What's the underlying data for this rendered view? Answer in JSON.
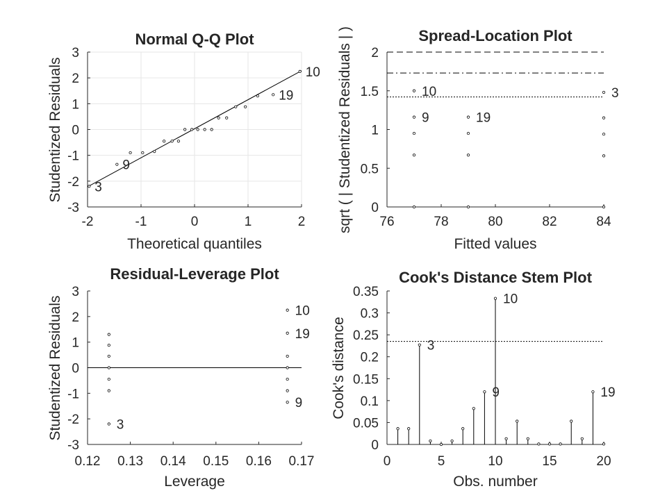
{
  "chart_data": [
    {
      "type": "scatter",
      "title": "Normal Q-Q Plot",
      "xlabel": "Theoretical quantiles",
      "ylabel": "Studentized Residuals",
      "xlim": [
        -2,
        2
      ],
      "ylim": [
        -3,
        3
      ],
      "xticks": [
        "-2",
        "-1",
        "0",
        "1",
        "2"
      ],
      "yticks": [
        "-3",
        "-2",
        "-1",
        "0",
        "1",
        "2",
        "3"
      ],
      "grid": true,
      "points": [
        [
          -1.97,
          -2.2
        ],
        [
          -1.45,
          -1.35
        ],
        [
          -1.2,
          -0.9
        ],
        [
          -0.97,
          -0.9
        ],
        [
          -0.75,
          -0.85
        ],
        [
          -0.57,
          -0.45
        ],
        [
          -0.42,
          -0.45
        ],
        [
          -0.3,
          -0.45
        ],
        [
          -0.18,
          0.0
        ],
        [
          -0.05,
          0.0
        ],
        [
          0.06,
          0.0
        ],
        [
          0.19,
          0.0
        ],
        [
          0.32,
          0.0
        ],
        [
          0.45,
          0.45
        ],
        [
          0.6,
          0.45
        ],
        [
          0.77,
          0.88
        ],
        [
          0.95,
          0.88
        ],
        [
          1.18,
          1.3
        ],
        [
          1.47,
          1.35
        ],
        [
          1.97,
          2.25
        ]
      ],
      "reference_line": [
        [
          -2,
          -2.22
        ],
        [
          2,
          2.28
        ]
      ],
      "annotations": [
        {
          "text": "10",
          "x": 1.97,
          "y": 2.25
        },
        {
          "text": "19",
          "x": 1.47,
          "y": 1.35
        },
        {
          "text": "9",
          "x": -1.45,
          "y": -1.35
        },
        {
          "text": "3",
          "x": -1.97,
          "y": -2.2
        }
      ]
    },
    {
      "type": "scatter",
      "title": "Spread-Location Plot",
      "xlabel": "Fitted values",
      "ylabel": "sqrt ( | Studentized Residuals | )",
      "xlim": [
        76,
        84
      ],
      "ylim": [
        0,
        2
      ],
      "xticks": [
        "76",
        "78",
        "80",
        "82",
        "84"
      ],
      "yticks": [
        "0",
        "0.5",
        "1",
        "1.5",
        "2"
      ],
      "grid": false,
      "points": [
        [
          77,
          1.5
        ],
        [
          77,
          1.16
        ],
        [
          77,
          0.95
        ],
        [
          77,
          0.67
        ],
        [
          77,
          0.0
        ],
        [
          79,
          1.16
        ],
        [
          79,
          0.95
        ],
        [
          79,
          0.67
        ],
        [
          79,
          0.0
        ],
        [
          84,
          1.48
        ],
        [
          84,
          1.15
        ],
        [
          84,
          0.94
        ],
        [
          84,
          0.66
        ],
        [
          84,
          0.0
        ]
      ],
      "hlines": [
        {
          "y": 2.0,
          "style": "dashed"
        },
        {
          "y": 1.73,
          "style": "dashdot"
        },
        {
          "y": 1.42,
          "style": "dotted"
        }
      ],
      "annotations": [
        {
          "text": "10",
          "x": 77,
          "y": 1.5
        },
        {
          "text": "9",
          "x": 77,
          "y": 1.16
        },
        {
          "text": "19",
          "x": 79,
          "y": 1.16
        },
        {
          "text": "3",
          "x": 84,
          "y": 1.48
        }
      ]
    },
    {
      "type": "scatter",
      "title": "Residual-Leverage Plot",
      "xlabel": "Leverage",
      "ylabel": "Studentized Residuals",
      "xlim": [
        0.12,
        0.17
      ],
      "ylim": [
        -3,
        3
      ],
      "xticks": [
        "0.12",
        "0.13",
        "0.14",
        "0.15",
        "0.16",
        "0.17"
      ],
      "yticks": [
        "-3",
        "-2",
        "-1",
        "0",
        "1",
        "2",
        "3"
      ],
      "grid": false,
      "points": [
        [
          0.125,
          1.3
        ],
        [
          0.125,
          0.88
        ],
        [
          0.125,
          0.45
        ],
        [
          0.125,
          0.0
        ],
        [
          0.125,
          -0.45
        ],
        [
          0.125,
          -0.9
        ],
        [
          0.125,
          -2.2
        ],
        [
          0.1667,
          2.25
        ],
        [
          0.1667,
          1.35
        ],
        [
          0.1667,
          0.45
        ],
        [
          0.1667,
          0.0
        ],
        [
          0.1667,
          -0.45
        ],
        [
          0.1667,
          -0.9
        ],
        [
          0.1667,
          -1.35
        ]
      ],
      "hlines": [
        {
          "y": 0,
          "style": "solid"
        }
      ],
      "annotations": [
        {
          "text": "10",
          "x": 0.1667,
          "y": 2.25
        },
        {
          "text": "19",
          "x": 0.1667,
          "y": 1.35
        },
        {
          "text": "9",
          "x": 0.1667,
          "y": -1.35
        },
        {
          "text": "3",
          "x": 0.125,
          "y": -2.2
        }
      ]
    },
    {
      "type": "stem",
      "title": "Cook's Distance Stem Plot",
      "xlabel": "Obs. number",
      "ylabel": "Cook's distance",
      "xlim": [
        0,
        20
      ],
      "ylim": [
        0,
        0.35
      ],
      "xticks": [
        "0",
        "5",
        "10",
        "15",
        "20"
      ],
      "yticks": [
        "0",
        "0.05",
        "0.1",
        "0.15",
        "0.2",
        "0.25",
        "0.3",
        "0.35"
      ],
      "grid": false,
      "x": [
        1,
        2,
        3,
        4,
        5,
        6,
        7,
        8,
        9,
        10,
        11,
        12,
        13,
        14,
        15,
        16,
        17,
        18,
        19,
        20
      ],
      "values": [
        0.036,
        0.036,
        0.227,
        0.008,
        0.0,
        0.008,
        0.036,
        0.082,
        0.12,
        0.333,
        0.013,
        0.053,
        0.013,
        0.001,
        0.001,
        0.001,
        0.053,
        0.013,
        0.12,
        0.001
      ],
      "hlines": [
        {
          "y": 0.235,
          "style": "dotted"
        }
      ],
      "annotations": [
        {
          "text": "10",
          "x": 10,
          "y": 0.333
        },
        {
          "text": "3",
          "x": 3,
          "y": 0.227
        },
        {
          "text": "9",
          "x": 9,
          "y": 0.12
        },
        {
          "text": "19",
          "x": 19,
          "y": 0.12
        }
      ]
    }
  ]
}
